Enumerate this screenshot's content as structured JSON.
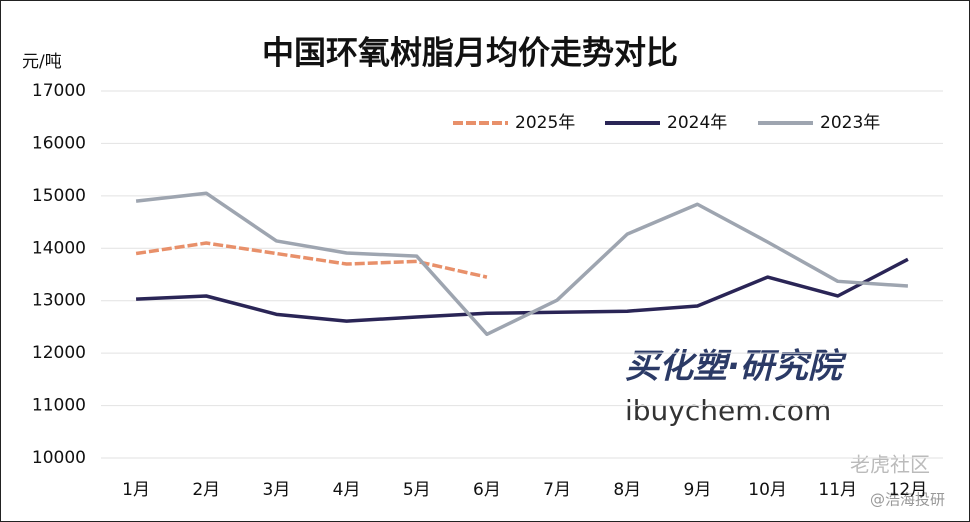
{
  "chart_data": {
    "type": "line",
    "title": "中国环氧树脂月均价走势对比",
    "y_label": "元/吨",
    "categories": [
      "1月",
      "2月",
      "3月",
      "4月",
      "5月",
      "6月",
      "7月",
      "8月",
      "9月",
      "10月",
      "11月",
      "12月"
    ],
    "series": [
      {
        "name": "2025年",
        "color": "#e8906a",
        "dashed": true,
        "values": [
          13900,
          14100,
          13900,
          13700,
          13750,
          13450,
          null,
          null,
          null,
          null,
          null,
          null
        ]
      },
      {
        "name": "2024年",
        "color": "#2a2556",
        "values": [
          13030,
          13090,
          12740,
          12610,
          12690,
          12760,
          12780,
          12800,
          12900,
          13450,
          13090,
          13790
        ]
      },
      {
        "name": "2023年",
        "color": "#9ea5b0",
        "values": [
          14900,
          15050,
          14140,
          13910,
          13850,
          12360,
          13010,
          14270,
          14840,
          14120,
          13370,
          13280
        ]
      }
    ],
    "ylim": [
      10000,
      17000
    ],
    "yticks": [
      10000,
      11000,
      12000,
      13000,
      14000,
      15000,
      16000,
      17000
    ],
    "grid": true,
    "legend": "top-right",
    "watermarks": [
      "买化塑·研究院",
      "ibuychem.com",
      "老虎社区",
      "@浩海投研"
    ]
  }
}
